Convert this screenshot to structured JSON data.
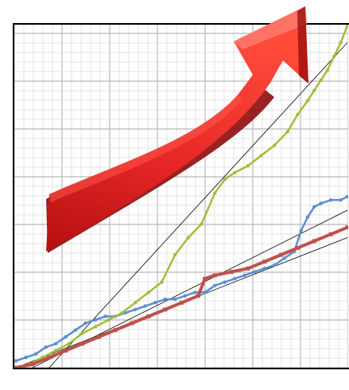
{
  "chart_data": {
    "type": "line",
    "title": "",
    "xlabel": "",
    "ylabel": "",
    "grid": true,
    "legend": "none",
    "xlim": [
      0,
      100
    ],
    "ylim": [
      0,
      100
    ],
    "series": [
      {
        "color": "#5b8ed0",
        "marker": "dot",
        "x": [
          0,
          3,
          6,
          9,
          12,
          15,
          18,
          21,
          24,
          27,
          30,
          33,
          36,
          39,
          42,
          45,
          48,
          51,
          54,
          57,
          60,
          63,
          66,
          69,
          72,
          75,
          78,
          81,
          84,
          86,
          88,
          90,
          92,
          95,
          98,
          100
        ],
        "values": [
          2,
          3,
          4,
          6,
          7,
          9,
          11,
          13,
          14,
          15,
          15,
          16,
          17,
          18,
          19,
          20,
          20,
          21,
          22,
          22,
          24,
          25,
          26,
          27,
          28,
          29,
          30,
          32,
          34,
          40,
          44,
          47,
          48,
          49,
          49,
          50
        ]
      },
      {
        "color": "#9fbf3b",
        "marker": "dot",
        "x": [
          0,
          4,
          8,
          12,
          16,
          20,
          24,
          28,
          32,
          36,
          40,
          44,
          48,
          52,
          56,
          60,
          63,
          66,
          70,
          74,
          78,
          82,
          85,
          88,
          90,
          92,
          94,
          96,
          98,
          100
        ],
        "values": [
          0,
          1,
          3,
          5,
          7,
          10,
          12,
          14,
          16,
          19,
          22,
          25,
          33,
          38,
          42,
          51,
          55,
          57,
          59,
          62,
          65,
          69,
          74,
          78,
          81,
          84,
          87,
          91,
          95,
          100
        ]
      },
      {
        "color": "#c0504d",
        "marker": "square",
        "x": [
          0,
          5,
          10,
          15,
          20,
          25,
          30,
          35,
          40,
          45,
          50,
          55,
          57,
          60,
          65,
          70,
          75,
          80,
          85,
          90,
          95,
          100
        ],
        "values": [
          0,
          1,
          3,
          5,
          7,
          9,
          11,
          13,
          15,
          17,
          19,
          21,
          26,
          27,
          28,
          29,
          31,
          33,
          35,
          37,
          39,
          41
        ]
      }
    ],
    "trendlines": [
      {
        "color": "#1a1a1a",
        "from": [
          10,
          0
        ],
        "to": [
          100,
          95
        ]
      },
      {
        "color": "#1a1a1a",
        "from": [
          5,
          0
        ],
        "to": [
          100,
          46
        ]
      },
      {
        "color": "#1a1a1a",
        "from": [
          0,
          0
        ],
        "to": [
          100,
          38
        ]
      }
    ]
  },
  "decoration": {
    "arrow_name": "red-up-arrow",
    "arrow_color": "#e02424",
    "arrow_dark": "#9b0e0e",
    "arrow_light": "#ff7a6e",
    "frame_color": "#000000",
    "grid_major": "#b8b8b8",
    "grid_minor": "#dcdcdc"
  }
}
